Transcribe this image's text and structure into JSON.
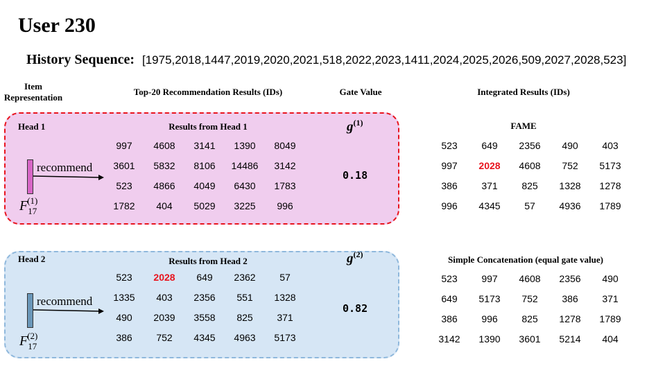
{
  "title": "User 230",
  "history": {
    "label": "History Sequence:",
    "values": "[1975,2018,1447,2019,2020,2021,518,2022,2023,1411,2024,2025,2026,509,2027,2028,523]"
  },
  "columns": {
    "item_rep_line1": "Item",
    "item_rep_line2": "Representation",
    "top20": "Top-20 Recommendation Results (IDs)",
    "gate": "Gate Value",
    "integrated": "Integrated Results (IDs)"
  },
  "colors": {
    "pink_box": "#f0cdee",
    "pink_border": "#e8141e",
    "blue_box": "#d6e6f5",
    "blue_border": "#8fb8dc",
    "highlight": "#e8141e"
  },
  "heads": [
    {
      "label": "Head 1",
      "results_title": "Results from Head 1",
      "recommend_label": "recommend",
      "f_base": "F",
      "f_sup": "(1)",
      "f_sub": "17",
      "g_base": "g",
      "g_sup": "(1)",
      "gate_value": "0.18",
      "bar_color": "#d766c6",
      "rows": [
        [
          "997",
          "4608",
          "3141",
          "1390",
          "8049"
        ],
        [
          "3601",
          "5832",
          "8106",
          "14486",
          "3142"
        ],
        [
          "523",
          "4866",
          "4049",
          "6430",
          "1783"
        ],
        [
          "1782",
          "404",
          "5029",
          "3225",
          "996"
        ]
      ],
      "highlight": []
    },
    {
      "label": "Head 2",
      "results_title": "Results from Head 2",
      "recommend_label": "recommend",
      "f_base": "F",
      "f_sup": "(2)",
      "f_sub": "17",
      "g_base": "g",
      "g_sup": "(2)",
      "gate_value": "0.82",
      "bar_color": "#6a97b9",
      "rows": [
        [
          "523",
          "2028",
          "649",
          "2362",
          "57"
        ],
        [
          "1335",
          "403",
          "2356",
          "551",
          "1328"
        ],
        [
          "490",
          "2039",
          "3558",
          "825",
          "371"
        ],
        [
          "386",
          "752",
          "4345",
          "4963",
          "5173"
        ]
      ],
      "highlight": [
        "2028"
      ]
    }
  ],
  "integrated": [
    {
      "title": "FAME",
      "rows": [
        [
          "523",
          "649",
          "2356",
          "490",
          "403"
        ],
        [
          "997",
          "2028",
          "4608",
          "752",
          "5173"
        ],
        [
          "386",
          "371",
          "825",
          "1328",
          "1278"
        ],
        [
          "996",
          "4345",
          "57",
          "4936",
          "1789"
        ]
      ],
      "highlight": [
        "2028"
      ]
    },
    {
      "title": "Simple Concatenation (equal gate value)",
      "rows": [
        [
          "523",
          "997",
          "4608",
          "2356",
          "490"
        ],
        [
          "649",
          "5173",
          "752",
          "386",
          "371"
        ],
        [
          "386",
          "996",
          "825",
          "1278",
          "1789"
        ],
        [
          "3142",
          "1390",
          "3601",
          "5214",
          "404"
        ]
      ],
      "highlight": []
    }
  ]
}
